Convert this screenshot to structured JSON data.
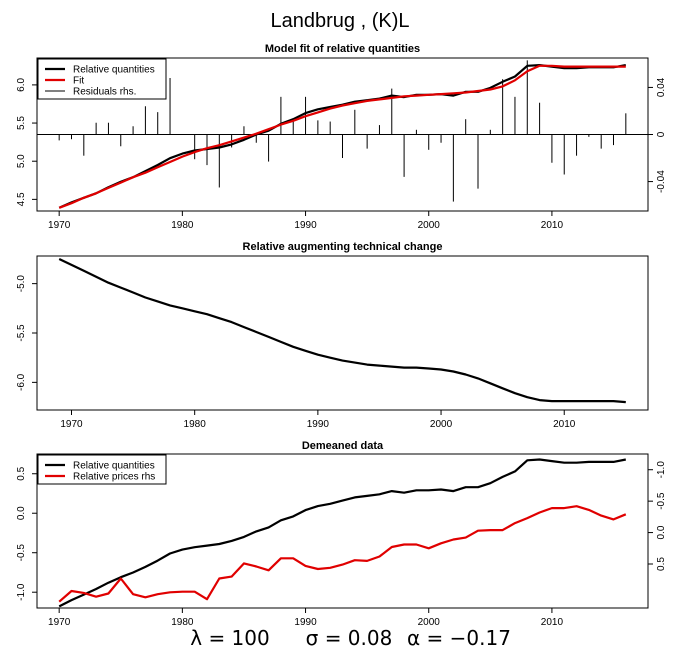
{
  "main_title": "Landbrug , (K)L",
  "footer": {
    "lambda": "λ = 100",
    "sigma": "σ = 0.08",
    "alpha": "α = −0.17"
  },
  "colors": {
    "black": "#000000",
    "red": "#e00000"
  },
  "chart_data": [
    {
      "type": "line",
      "title": "Model fit of relative quantities",
      "xlim": [
        1970,
        2016
      ],
      "ylim_left": [
        4.4,
        6.3
      ],
      "ylim_right": [
        -0.065,
        0.065
      ],
      "x_ticks": [
        "1970",
        "1980",
        "1990",
        "2000",
        "2010"
      ],
      "y_ticks_left": [
        "4.5",
        "5.0",
        "5.5",
        "6.0"
      ],
      "y_ticks_right": [
        "-0.04",
        "0",
        "0.04"
      ],
      "legend": [
        "Relative quantities",
        "Fit",
        "Residuals rhs."
      ],
      "legend_position": "top-left",
      "x": [
        1970,
        1971,
        1972,
        1973,
        1974,
        1975,
        1976,
        1977,
        1978,
        1979,
        1980,
        1981,
        1982,
        1983,
        1984,
        1985,
        1986,
        1987,
        1988,
        1989,
        1990,
        1991,
        1992,
        1993,
        1994,
        1995,
        1996,
        1997,
        1998,
        1999,
        2000,
        2001,
        2002,
        2003,
        2004,
        2005,
        2006,
        2007,
        2008,
        2009,
        2010,
        2011,
        2012,
        2013,
        2014,
        2015,
        2016
      ],
      "series": [
        {
          "name": "Relative quantities",
          "color": "#000000",
          "values": [
            4.39,
            4.46,
            4.52,
            4.58,
            4.66,
            4.73,
            4.79,
            4.87,
            4.95,
            5.04,
            5.1,
            5.14,
            5.16,
            5.18,
            5.22,
            5.28,
            5.35,
            5.4,
            5.49,
            5.55,
            5.63,
            5.68,
            5.71,
            5.74,
            5.78,
            5.8,
            5.82,
            5.86,
            5.84,
            5.87,
            5.87,
            5.88,
            5.86,
            5.91,
            5.91,
            5.96,
            6.04,
            6.11,
            6.25,
            6.26,
            6.24,
            6.22,
            6.22,
            6.23,
            6.23,
            6.23,
            6.26
          ]
        },
        {
          "name": "Fit",
          "color": "#e00000",
          "values": [
            4.39,
            4.45,
            4.52,
            4.58,
            4.65,
            4.72,
            4.79,
            4.85,
            4.92,
            4.99,
            5.06,
            5.12,
            5.17,
            5.21,
            5.26,
            5.31,
            5.36,
            5.42,
            5.48,
            5.53,
            5.59,
            5.64,
            5.69,
            5.73,
            5.76,
            5.79,
            5.81,
            5.83,
            5.85,
            5.86,
            5.87,
            5.88,
            5.89,
            5.9,
            5.92,
            5.94,
            5.98,
            6.06,
            6.18,
            6.25,
            6.25,
            6.24,
            6.24,
            6.24,
            6.24,
            6.24,
            6.24
          ]
        },
        {
          "name": "Residuals rhs.",
          "color": "#000000",
          "values": [
            -0.005,
            -0.004,
            -0.018,
            0.01,
            0.01,
            -0.01,
            0.007,
            0.024,
            0.019,
            0.048,
            0.0,
            -0.021,
            -0.026,
            -0.045,
            -0.011,
            0.007,
            -0.007,
            -0.023,
            0.032,
            0.012,
            0.032,
            0.012,
            0.011,
            -0.02,
            0.021,
            -0.012,
            0.008,
            0.039,
            -0.036,
            0.004,
            -0.013,
            -0.007,
            -0.057,
            0.013,
            -0.046,
            0.004,
            0.047,
            0.032,
            0.063,
            0.027,
            -0.024,
            -0.034,
            -0.018,
            -0.002,
            -0.012,
            -0.009,
            0.018
          ]
        }
      ]
    },
    {
      "type": "line",
      "title": "Relative augmenting technical change",
      "xlim": [
        1969,
        2015
      ],
      "ylim": [
        -6.28,
        -4.72
      ],
      "x_ticks": [
        "1970",
        "1980",
        "1990",
        "2000",
        "2010"
      ],
      "y_ticks_left": [
        "-5.0",
        "-5.5",
        "-6.0"
      ],
      "x": [
        1969,
        1970,
        1971,
        1972,
        1973,
        1974,
        1975,
        1976,
        1977,
        1978,
        1979,
        1980,
        1981,
        1982,
        1983,
        1984,
        1985,
        1986,
        1987,
        1988,
        1989,
        1990,
        1991,
        1992,
        1993,
        1994,
        1995,
        1996,
        1997,
        1998,
        1999,
        2000,
        2001,
        2002,
        2003,
        2004,
        2005,
        2006,
        2007,
        2008,
        2009,
        2010,
        2011,
        2012,
        2013,
        2014,
        2015
      ],
      "series": [
        {
          "color": "#000000",
          "values": [
            -4.75,
            -4.81,
            -4.87,
            -4.93,
            -4.99,
            -5.04,
            -5.09,
            -5.14,
            -5.18,
            -5.22,
            -5.25,
            -5.28,
            -5.31,
            -5.35,
            -5.39,
            -5.44,
            -5.49,
            -5.54,
            -5.59,
            -5.64,
            -5.68,
            -5.72,
            -5.75,
            -5.78,
            -5.8,
            -5.82,
            -5.83,
            -5.84,
            -5.85,
            -5.85,
            -5.86,
            -5.87,
            -5.89,
            -5.92,
            -5.96,
            -6.01,
            -6.06,
            -6.11,
            -6.15,
            -6.18,
            -6.19,
            -6.19,
            -6.19,
            -6.19,
            -6.19,
            -6.19,
            -6.2
          ]
        }
      ]
    },
    {
      "type": "line",
      "title": "Demeaned data",
      "xlim": [
        1970,
        2016
      ],
      "ylim_left": [
        -1.2,
        0.75
      ],
      "ylim_right_reversed": [
        1.2,
        -1.25
      ],
      "x_ticks": [
        "1970",
        "1980",
        "1990",
        "2000",
        "2010"
      ],
      "y_ticks_left": [
        "-1.0",
        "-0.5",
        "0.0",
        "0.5"
      ],
      "y_ticks_right": [
        "-1.0",
        "-0.5",
        "0.0",
        "0.5"
      ],
      "legend": [
        "Relative quantities",
        "Relative prices rhs"
      ],
      "legend_position": "top-left",
      "x": [
        1970,
        1971,
        1972,
        1973,
        1974,
        1975,
        1976,
        1977,
        1978,
        1979,
        1980,
        1981,
        1982,
        1983,
        1984,
        1985,
        1986,
        1987,
        1988,
        1989,
        1990,
        1991,
        1992,
        1993,
        1994,
        1995,
        1996,
        1997,
        1998,
        1999,
        2000,
        2001,
        2002,
        2003,
        2004,
        2005,
        2006,
        2007,
        2008,
        2009,
        2010,
        2011,
        2012,
        2013,
        2014,
        2015,
        2016
      ],
      "series": [
        {
          "name": "Relative quantities",
          "color": "#000000",
          "values": [
            -1.18,
            -1.1,
            -1.03,
            -0.96,
            -0.88,
            -0.81,
            -0.75,
            -0.68,
            -0.6,
            -0.51,
            -0.46,
            -0.43,
            -0.41,
            -0.39,
            -0.35,
            -0.3,
            -0.23,
            -0.18,
            -0.09,
            -0.04,
            0.04,
            0.09,
            0.12,
            0.16,
            0.2,
            0.22,
            0.24,
            0.28,
            0.26,
            0.29,
            0.29,
            0.3,
            0.28,
            0.33,
            0.33,
            0.38,
            0.46,
            0.53,
            0.67,
            0.68,
            0.66,
            0.64,
            0.64,
            0.65,
            0.65,
            0.65,
            0.68
          ]
        },
        {
          "name": "Relative prices rhs",
          "color": "#e00000",
          "values": [
            1.1,
            0.93,
            0.96,
            1.02,
            0.97,
            0.73,
            0.98,
            1.03,
            0.98,
            0.95,
            0.94,
            0.94,
            1.06,
            0.73,
            0.7,
            0.49,
            0.54,
            0.6,
            0.41,
            0.41,
            0.53,
            0.58,
            0.56,
            0.51,
            0.44,
            0.45,
            0.38,
            0.23,
            0.19,
            0.19,
            0.25,
            0.17,
            0.11,
            0.08,
            -0.03,
            -0.04,
            -0.04,
            -0.15,
            -0.23,
            -0.32,
            -0.39,
            -0.39,
            -0.42,
            -0.36,
            -0.27,
            -0.21,
            -0.29
          ]
        }
      ]
    }
  ]
}
